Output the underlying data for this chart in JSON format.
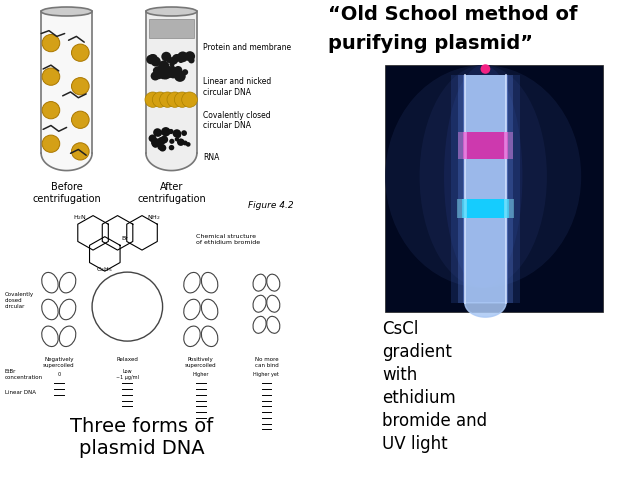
{
  "bg_color": "#ffffff",
  "title_quote_line1": "“Old School method of",
  "title_quote_line2": "purifying plasmid”",
  "caption_cscl": "CsCl\ngradient\nwith\nethidium\nbromide and\nUV light",
  "caption_three": "Three forms of\nplasmid DNA",
  "tube_before_label": "Before\ncentrifugation",
  "tube_after_label": "After\ncentrifugation",
  "figure_label": "Figure 4.2",
  "band_labels": [
    "Protein and membrane",
    "Linear and nicked\ncircular DNA",
    "Covalently closed\ncircular DNA",
    "RNA"
  ],
  "yellow_color": "#d4a017",
  "dark_color": "#333333",
  "photo_bg": "#010820",
  "tube_glow_color": "#8ab4f8",
  "band_pink": "#cc44bb",
  "band_blue": "#22ccff"
}
